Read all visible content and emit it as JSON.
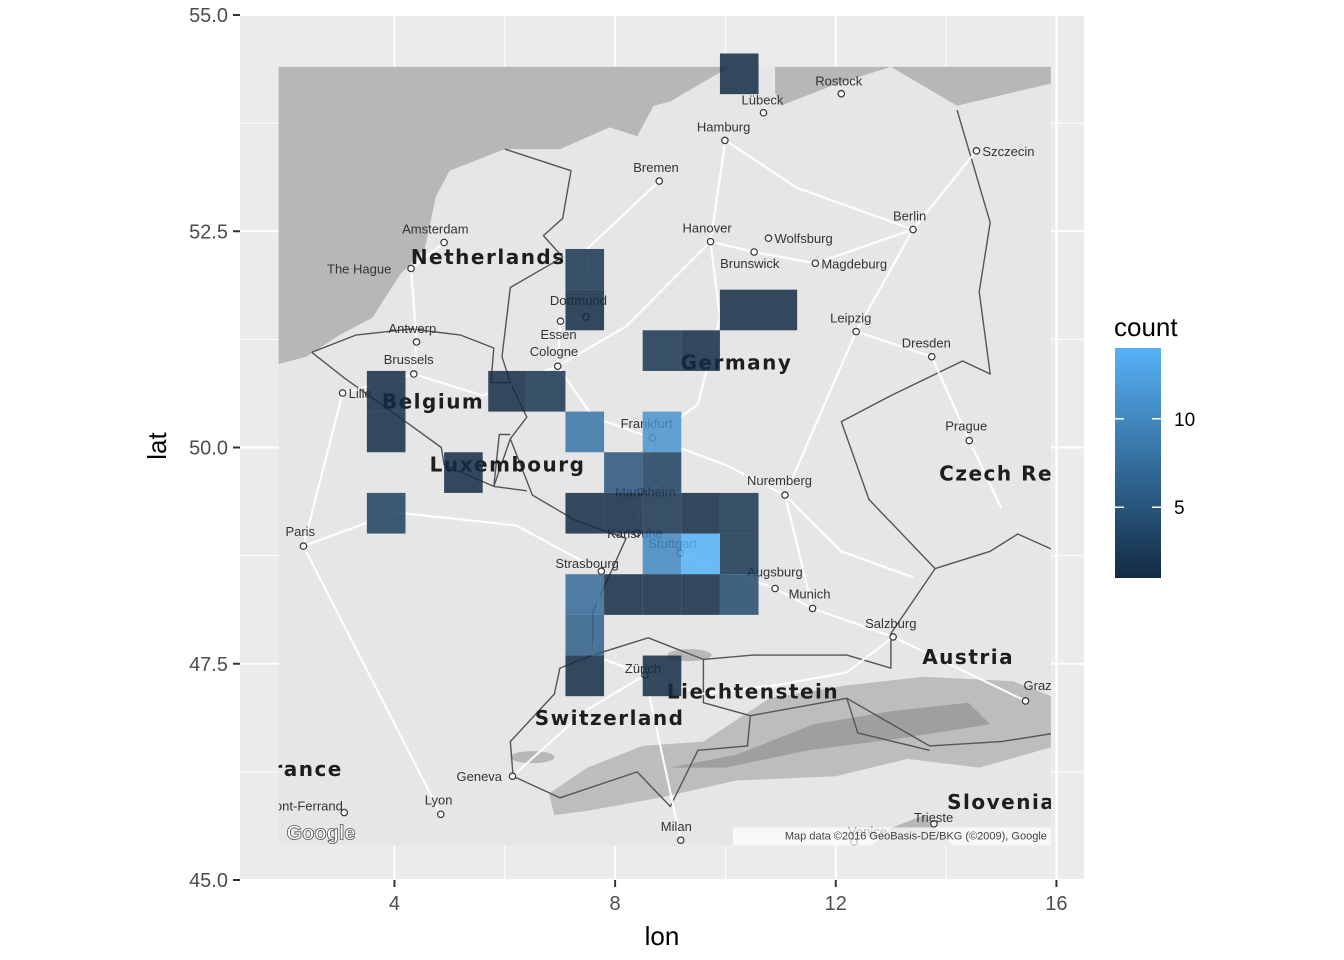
{
  "chart_data": {
    "type": "heatmap",
    "title": "",
    "xlabel": "lon",
    "ylabel": "lat",
    "xlim": [
      1.2,
      16.5
    ],
    "ylim": [
      45,
      55
    ],
    "x_ticks": [
      "4",
      "8",
      "12",
      "16"
    ],
    "x_tick_values": [
      4,
      8,
      12,
      16
    ],
    "y_ticks": [
      "45.0",
      "47.5",
      "50.0",
      "52.5",
      "55.0"
    ],
    "y_tick_values": [
      45.0,
      47.5,
      50.0,
      52.5,
      55.0
    ],
    "grid": true,
    "bin_width": [
      0.7,
      0.47
    ],
    "bins": [
      {
        "x": 10.25,
        "y": 54.32,
        "count": 1
      },
      {
        "x": 7.45,
        "y": 52.06,
        "count": 2
      },
      {
        "x": 7.45,
        "y": 51.59,
        "count": 1
      },
      {
        "x": 10.25,
        "y": 51.59,
        "count": 1
      },
      {
        "x": 10.95,
        "y": 51.59,
        "count": 1
      },
      {
        "x": 8.85,
        "y": 51.12,
        "count": 2
      },
      {
        "x": 9.55,
        "y": 51.12,
        "count": 1
      },
      {
        "x": 3.85,
        "y": 50.65,
        "count": 1
      },
      {
        "x": 6.05,
        "y": 50.65,
        "count": 1
      },
      {
        "x": 6.75,
        "y": 50.65,
        "count": 2
      },
      {
        "x": 3.85,
        "y": 50.18,
        "count": 1
      },
      {
        "x": 7.45,
        "y": 50.18,
        "count": 8
      },
      {
        "x": 8.85,
        "y": 50.18,
        "count": 11
      },
      {
        "x": 5.25,
        "y": 49.71,
        "count": 1
      },
      {
        "x": 8.15,
        "y": 49.71,
        "count": 5
      },
      {
        "x": 8.85,
        "y": 49.71,
        "count": 3
      },
      {
        "x": 3.85,
        "y": 49.24,
        "count": 3
      },
      {
        "x": 7.45,
        "y": 49.24,
        "count": 1
      },
      {
        "x": 8.15,
        "y": 49.24,
        "count": 1
      },
      {
        "x": 8.85,
        "y": 49.24,
        "count": 2
      },
      {
        "x": 9.55,
        "y": 49.24,
        "count": 1
      },
      {
        "x": 10.25,
        "y": 49.24,
        "count": 2
      },
      {
        "x": 8.85,
        "y": 48.77,
        "count": 10
      },
      {
        "x": 9.55,
        "y": 48.77,
        "count": 14
      },
      {
        "x": 10.25,
        "y": 48.77,
        "count": 2
      },
      {
        "x": 7.45,
        "y": 48.3,
        "count": 7
      },
      {
        "x": 8.15,
        "y": 48.3,
        "count": 1
      },
      {
        "x": 8.85,
        "y": 48.3,
        "count": 1
      },
      {
        "x": 9.55,
        "y": 48.3,
        "count": 1
      },
      {
        "x": 10.25,
        "y": 48.3,
        "count": 4
      },
      {
        "x": 7.45,
        "y": 47.83,
        "count": 6
      },
      {
        "x": 7.45,
        "y": 47.36,
        "count": 1
      },
      {
        "x": 8.85,
        "y": 47.36,
        "count": 1
      }
    ],
    "legend": {
      "title": "count",
      "placement": "right",
      "labels": [
        "10",
        "5"
      ],
      "label_values": [
        10,
        5
      ],
      "range": [
        1,
        14
      ],
      "color_low": "#132B43",
      "color_high": "#56B1F7"
    }
  },
  "map": {
    "extent": {
      "lon": [
        1.9,
        15.9
      ],
      "lat": [
        45.4,
        54.4
      ]
    },
    "attribution": "Map data ©2016 GeoBasis-DE/BKG (©2009), Google",
    "logo": "Google",
    "colors": {
      "land": "#e6e6e6",
      "water": "#b7b7b7",
      "panel": "#ebebeb",
      "grid": "#ffffff",
      "border": "#555555",
      "alps": "#9a9a9a"
    },
    "countries": [
      {
        "name": "Netherlands",
        "lon": 5.7,
        "lat": 52.12
      },
      {
        "name": "Germany",
        "lon": 10.2,
        "lat": 50.9
      },
      {
        "name": "Belgium",
        "lon": 4.7,
        "lat": 50.45
      },
      {
        "name": "Luxembourg",
        "lon": 6.05,
        "lat": 49.72
      },
      {
        "name": "Czech Rep",
        "lon": 15.05,
        "lat": 49.62
      },
      {
        "name": "Austria",
        "lon": 14.4,
        "lat": 47.5
      },
      {
        "name": "Liechtenstein",
        "lon": 10.5,
        "lat": 47.1
      },
      {
        "name": "Switzerland",
        "lon": 7.9,
        "lat": 46.79
      },
      {
        "name": "France",
        "lon": 2.3,
        "lat": 46.2
      },
      {
        "name": "Slovenia",
        "lon": 15.0,
        "lat": 45.82
      }
    ],
    "cities": [
      {
        "name": "Rostock",
        "lon": 12.1,
        "lat": 54.09,
        "dx": -26,
        "dy": -8
      },
      {
        "name": "Lübeck",
        "lon": 10.69,
        "lat": 53.87,
        "dx": -22,
        "dy": -8
      },
      {
        "name": "Hamburg",
        "lon": 9.99,
        "lat": 53.55,
        "dx": -28,
        "dy": -9
      },
      {
        "name": "Szczecin",
        "lon": 14.55,
        "lat": 53.43,
        "dx": 6,
        "dy": 5
      },
      {
        "name": "Bremen",
        "lon": 8.8,
        "lat": 53.08,
        "dx": -26,
        "dy": -9
      },
      {
        "name": "Berlin",
        "lon": 13.4,
        "lat": 52.52,
        "dx": -20,
        "dy": -9
      },
      {
        "name": "Amsterdam",
        "lon": 4.9,
        "lat": 52.37,
        "dx": -42,
        "dy": -9
      },
      {
        "name": "Hanover",
        "lon": 9.73,
        "lat": 52.38,
        "dx": -28,
        "dy": -9
      },
      {
        "name": "Wolfsburg",
        "lon": 10.78,
        "lat": 52.42,
        "dx": 6,
        "dy": 5
      },
      {
        "name": "The Hague",
        "lon": 4.3,
        "lat": 52.07,
        "dx": -84,
        "dy": 5
      },
      {
        "name": "Brunswick",
        "lon": 10.52,
        "lat": 52.26,
        "dx": -34,
        "dy": 16
      },
      {
        "name": "Magdeburg",
        "lon": 11.63,
        "lat": 52.13,
        "dx": 6,
        "dy": 5
      },
      {
        "name": "Dortmund",
        "lon": 7.47,
        "lat": 51.51,
        "dx": -36,
        "dy": -12
      },
      {
        "name": "Leipzig",
        "lon": 12.37,
        "lat": 51.34,
        "dx": -26,
        "dy": -9
      },
      {
        "name": "Antwerp",
        "lon": 4.4,
        "lat": 51.22,
        "dx": -28,
        "dy": -9
      },
      {
        "name": "Essen",
        "lon": 7.01,
        "lat": 51.46,
        "dx": -20,
        "dy": 18
      },
      {
        "name": "Dresden",
        "lon": 13.74,
        "lat": 51.05,
        "dx": -30,
        "dy": -9
      },
      {
        "name": "Cologne",
        "lon": 6.96,
        "lat": 50.94,
        "dx": -28,
        "dy": -10
      },
      {
        "name": "Brussels",
        "lon": 4.35,
        "lat": 50.85,
        "dx": -30,
        "dy": -10
      },
      {
        "name": "Lille",
        "lon": 3.06,
        "lat": 50.63,
        "dx": 6,
        "dy": 5
      },
      {
        "name": "Frankfurt",
        "lon": 8.68,
        "lat": 50.11,
        "dx": -32,
        "dy": -10
      },
      {
        "name": "Prague",
        "lon": 14.42,
        "lat": 50.08,
        "dx": -24,
        "dy": -10
      },
      {
        "name": "Mannheim",
        "lon": 8.47,
        "lat": 49.49,
        "dx": -26,
        "dy": 5
      },
      {
        "name": "Nuremberg",
        "lon": 11.08,
        "lat": 49.45,
        "dx": -38,
        "dy": -10
      },
      {
        "name": "Karlsruhe",
        "lon": 8.4,
        "lat": 49.01,
        "dx": -30,
        "dy": 5
      },
      {
        "name": "Paris",
        "lon": 2.35,
        "lat": 48.86,
        "dx": -18,
        "dy": -10
      },
      {
        "name": "Stuttgart",
        "lon": 9.18,
        "lat": 48.78,
        "dx": -32,
        "dy": -5
      },
      {
        "name": "Strasbourg",
        "lon": 7.75,
        "lat": 48.57,
        "dx": -46,
        "dy": -3
      },
      {
        "name": "Augsburg",
        "lon": 10.9,
        "lat": 48.37,
        "dx": -28,
        "dy": -12
      },
      {
        "name": "Munich",
        "lon": 11.58,
        "lat": 48.14,
        "dx": -24,
        "dy": -10
      },
      {
        "name": "Salzburg",
        "lon": 13.04,
        "lat": 47.81,
        "dx": -28,
        "dy": -9
      },
      {
        "name": "Zürich",
        "lon": 8.54,
        "lat": 47.37,
        "dx": -20,
        "dy": -2
      },
      {
        "name": "Graz",
        "lon": 15.44,
        "lat": 47.07,
        "dx": -2,
        "dy": -11
      },
      {
        "name": "Geneva",
        "lon": 6.14,
        "lat": 46.2,
        "dx": -56,
        "dy": 5
      },
      {
        "name": "Clermont-Ferrand",
        "lon": 3.09,
        "lat": 45.78,
        "dx": -104,
        "dy": -2
      },
      {
        "name": "Lyon",
        "lon": 4.84,
        "lat": 45.76,
        "dx": -16,
        "dy": -10
      },
      {
        "name": "Trieste",
        "lon": 13.78,
        "lat": 45.65,
        "dx": -20,
        "dy": -2
      },
      {
        "name": "Milan",
        "lon": 9.19,
        "lat": 45.46,
        "dx": -20,
        "dy": -9
      },
      {
        "name": "Venice",
        "lon": 12.33,
        "lat": 45.44,
        "dx": -6,
        "dy": -6
      }
    ]
  }
}
